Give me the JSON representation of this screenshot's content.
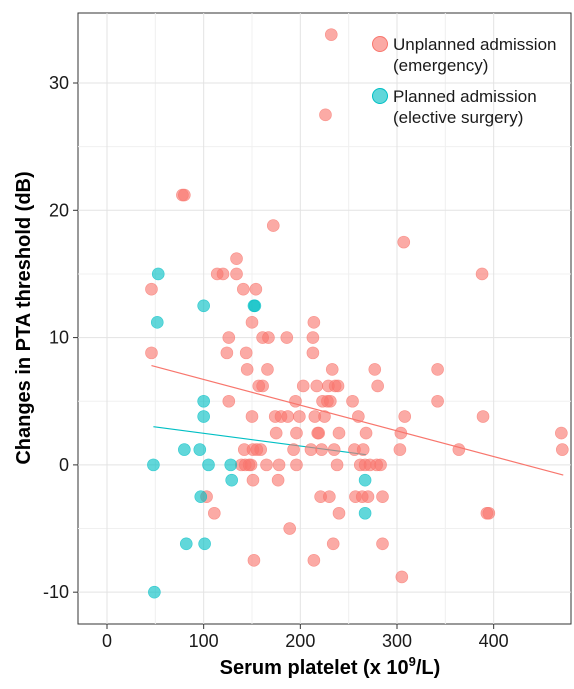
{
  "chart_data": {
    "type": "scatter",
    "xlabel": "Serum platelet (x 10",
    "xlabel_sup": "9",
    "xlabel_tail": "/L)",
    "ylabel": "Changes in PTA threshold (dB)",
    "xlim": [
      -30,
      480
    ],
    "ylim": [
      -12.5,
      35.5
    ],
    "xticks": [
      0,
      100,
      200,
      300,
      400
    ],
    "yticks": [
      -10,
      0,
      10,
      20,
      30
    ],
    "grid": true,
    "legend_position": "top-right",
    "colors": {
      "unplanned": "#F8766D",
      "planned": "#00BFC4"
    },
    "series": [
      {
        "name": "Unplanned admission (emergency)",
        "legend_lines": [
          "Unplanned admission",
          "(emergency)"
        ],
        "color": "#F8766D",
        "trend": [
          [
            46,
            7.8
          ],
          [
            472,
            -0.8
          ]
        ],
        "points": [
          [
            46,
            13.8
          ],
          [
            46,
            8.8
          ],
          [
            78,
            21.2
          ],
          [
            80,
            21.2
          ],
          [
            103,
            -2.5
          ],
          [
            111,
            -3.8
          ],
          [
            114,
            15
          ],
          [
            120,
            15
          ],
          [
            124,
            8.8
          ],
          [
            126,
            10
          ],
          [
            126,
            5
          ],
          [
            134,
            15
          ],
          [
            134,
            16.2
          ],
          [
            139,
            0
          ],
          [
            141,
            13.8
          ],
          [
            142,
            1.2
          ],
          [
            143,
            0
          ],
          [
            144,
            8.8
          ],
          [
            145,
            7.5
          ],
          [
            147,
            0
          ],
          [
            149,
            0
          ],
          [
            150,
            3.8
          ],
          [
            150,
            11.2
          ],
          [
            151,
            1.2
          ],
          [
            151,
            -1.2
          ],
          [
            152,
            -7.5
          ],
          [
            154,
            13.8
          ],
          [
            155,
            1.2
          ],
          [
            157,
            6.2
          ],
          [
            159,
            1.2
          ],
          [
            161,
            10
          ],
          [
            161,
            6.2
          ],
          [
            165,
            0
          ],
          [
            166,
            7.5
          ],
          [
            167,
            10
          ],
          [
            172,
            18.8
          ],
          [
            174,
            3.8
          ],
          [
            175,
            2.5
          ],
          [
            177,
            -1.2
          ],
          [
            178,
            0
          ],
          [
            180,
            3.8
          ],
          [
            186,
            10
          ],
          [
            187,
            3.8
          ],
          [
            189,
            -5
          ],
          [
            193,
            1.2
          ],
          [
            195,
            5
          ],
          [
            196,
            0
          ],
          [
            196,
            2.5
          ],
          [
            199,
            3.8
          ],
          [
            203,
            6.2
          ],
          [
            211,
            1.2
          ],
          [
            213,
            8.8
          ],
          [
            213,
            10
          ],
          [
            214,
            11.2
          ],
          [
            214,
            -7.5
          ],
          [
            215,
            3.8
          ],
          [
            217,
            6.2
          ],
          [
            218,
            2.5
          ],
          [
            219,
            2.5
          ],
          [
            221,
            -2.5
          ],
          [
            222,
            1.2
          ],
          [
            223,
            5
          ],
          [
            225,
            3.8
          ],
          [
            226,
            27.5
          ],
          [
            228,
            5
          ],
          [
            229,
            6.2
          ],
          [
            230,
            -2.5
          ],
          [
            231,
            5
          ],
          [
            232,
            33.8
          ],
          [
            233,
            7.5
          ],
          [
            234,
            -6.2
          ],
          [
            235,
            1.2
          ],
          [
            236,
            6.2
          ],
          [
            238,
            0
          ],
          [
            239,
            6.2
          ],
          [
            240,
            -3.8
          ],
          [
            240,
            2.5
          ],
          [
            254,
            5
          ],
          [
            256,
            1.2
          ],
          [
            257,
            -2.5
          ],
          [
            260,
            3.8
          ],
          [
            262,
            0
          ],
          [
            264,
            -2.5
          ],
          [
            265,
            1.2
          ],
          [
            267,
            0
          ],
          [
            268,
            2.5
          ],
          [
            270,
            -2.5
          ],
          [
            272,
            0
          ],
          [
            277,
            7.5
          ],
          [
            279,
            0
          ],
          [
            280,
            6.2
          ],
          [
            283,
            0
          ],
          [
            285,
            -2.5
          ],
          [
            285,
            -6.2
          ],
          [
            303,
            1.2
          ],
          [
            304,
            2.5
          ],
          [
            305,
            -8.8
          ],
          [
            307,
            17.5
          ],
          [
            308,
            3.8
          ],
          [
            342,
            7.5
          ],
          [
            342,
            5
          ],
          [
            364,
            1.2
          ],
          [
            388,
            15
          ],
          [
            389,
            3.8
          ],
          [
            393,
            -3.8
          ],
          [
            395,
            -3.8
          ],
          [
            470,
            2.5
          ],
          [
            471,
            1.2
          ]
        ]
      },
      {
        "name": "Planned admission (elective surgery)",
        "legend_lines": [
          "Planned admission",
          "(elective surgery)"
        ],
        "color": "#00BFC4",
        "trend": [
          [
            48,
            3.0
          ],
          [
            268,
            0.8
          ]
        ],
        "points": [
          [
            48,
            0
          ],
          [
            49,
            -10
          ],
          [
            52,
            11.2
          ],
          [
            53,
            15
          ],
          [
            80,
            1.2
          ],
          [
            82,
            -6.2
          ],
          [
            96,
            1.2
          ],
          [
            97,
            -2.5
          ],
          [
            100,
            12.5
          ],
          [
            100,
            3.8
          ],
          [
            100,
            5
          ],
          [
            101,
            -6.2
          ],
          [
            105,
            0
          ],
          [
            128,
            0
          ],
          [
            129,
            -1.2
          ],
          [
            152,
            12.5
          ],
          [
            153,
            12.5
          ],
          [
            267,
            -1.2
          ],
          [
            267,
            -3.8
          ]
        ]
      }
    ]
  }
}
